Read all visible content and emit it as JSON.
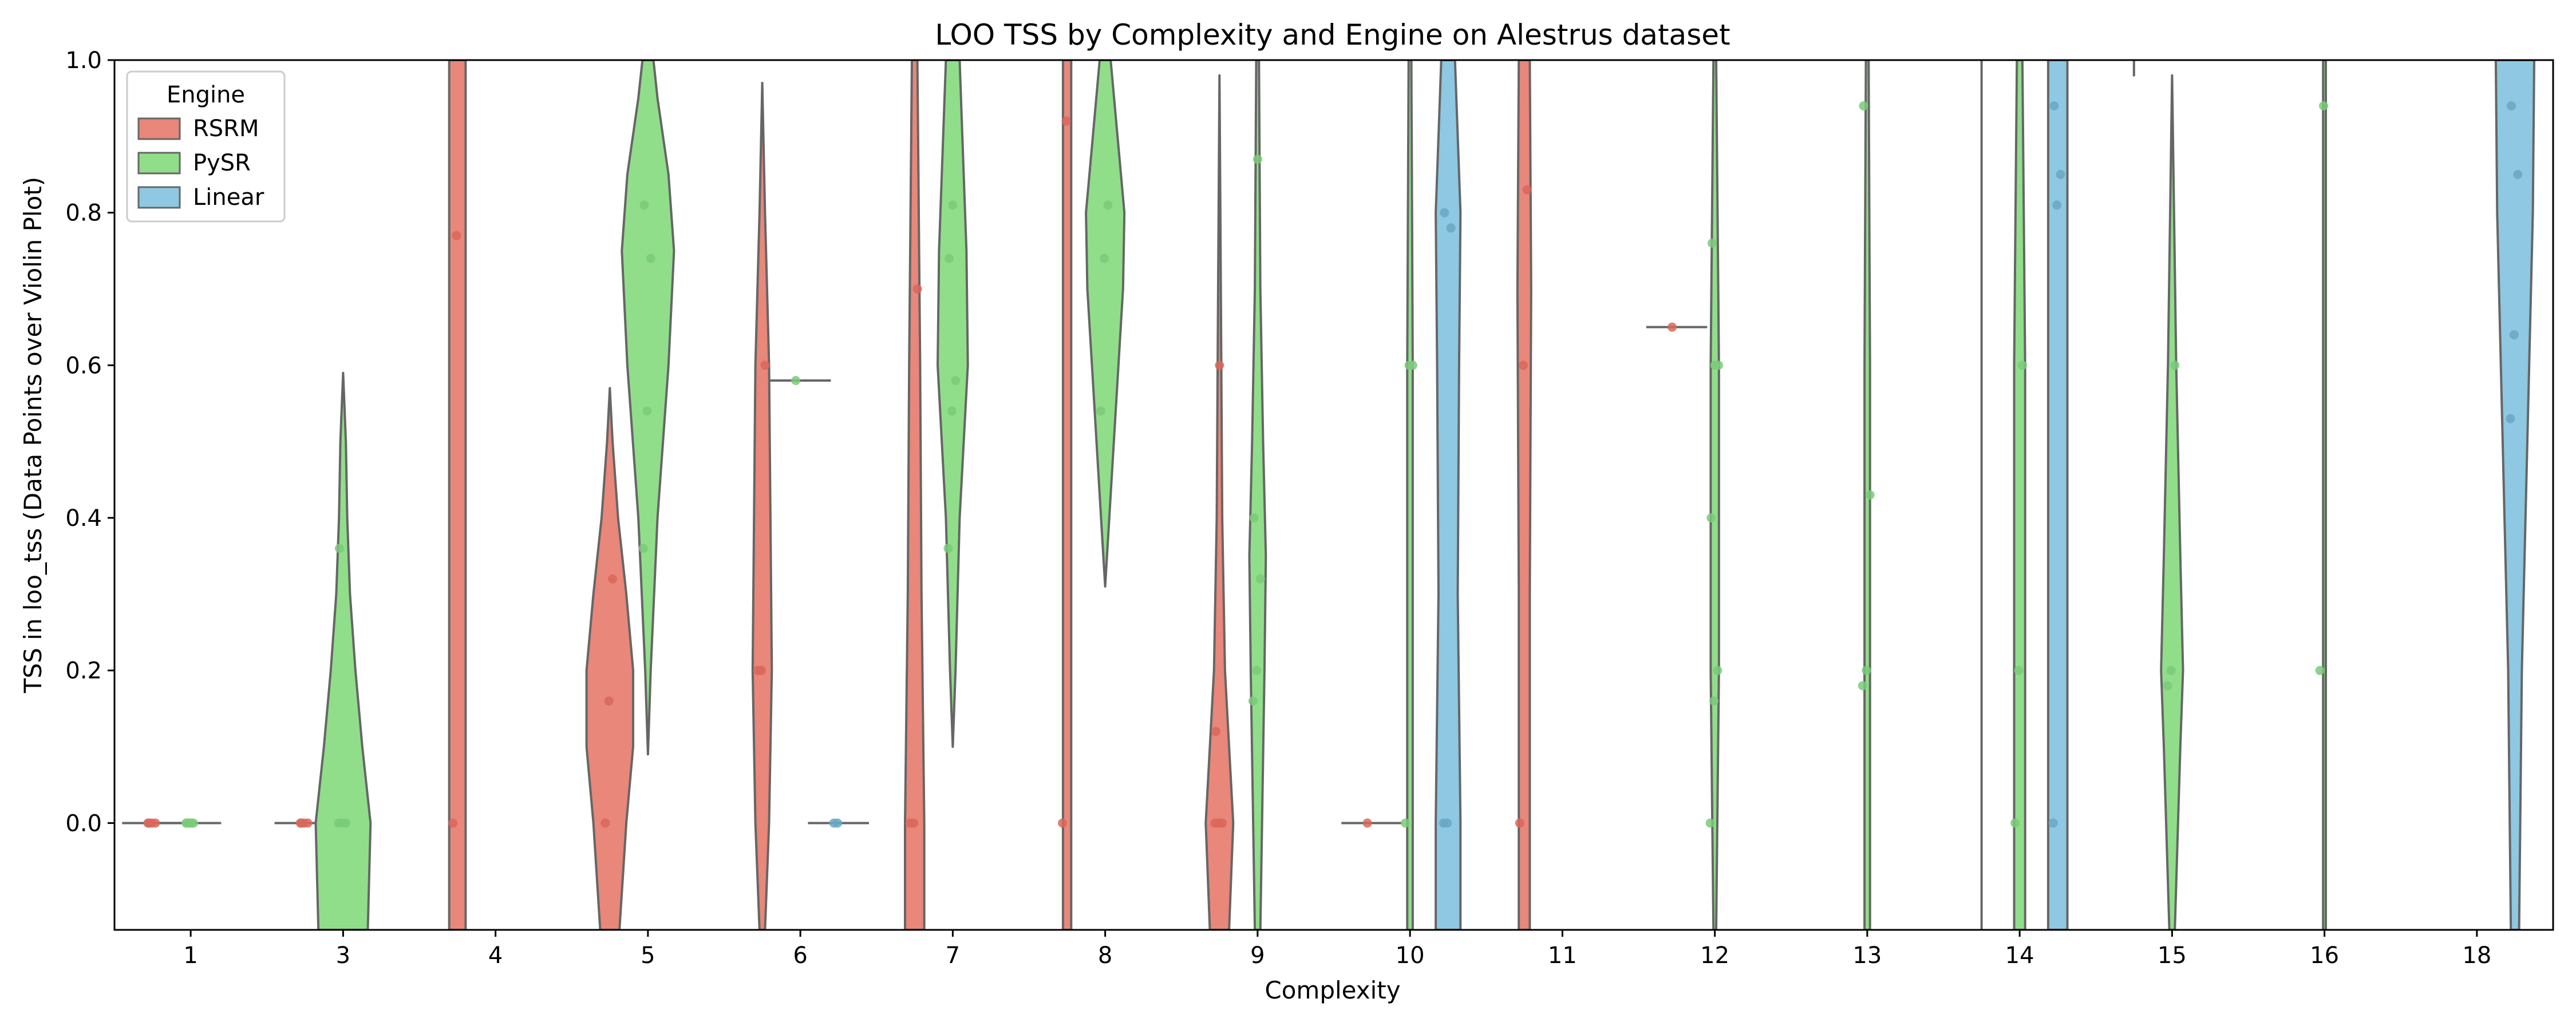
{
  "chart_data": {
    "type": "violin",
    "title": "LOO TSS by Complexity and Engine on Alestrus dataset",
    "xlabel": "Complexity",
    "ylabel": "TSS in loo_tss (Data Points over Violin Plot)",
    "ylim": [
      -0.14,
      1.0
    ],
    "yticks": [
      0.0,
      0.2,
      0.4,
      0.6,
      0.8,
      1.0
    ],
    "ytick_labels": [
      "0.0",
      "0.2",
      "0.4",
      "0.6",
      "0.8",
      "1.0"
    ],
    "categories": [
      "1",
      "3",
      "4",
      "5",
      "6",
      "7",
      "8",
      "9",
      "10",
      "11",
      "12",
      "13",
      "14",
      "15",
      "16",
      "18"
    ],
    "legend": {
      "title": "Engine",
      "position": "top-left"
    },
    "series": [
      {
        "name": "RSRM",
        "color": "#e8877a",
        "dot_color": "#d9675b",
        "offset": -0.25
      },
      {
        "name": "PySR",
        "color": "#90de8a",
        "dot_color": "#7acb79",
        "offset": 0.0
      },
      {
        "name": "Linear",
        "color": "#8ec8e2",
        "dot_color": "#6aa7c4",
        "offset": 0.25
      }
    ],
    "violins": [
      {
        "category": "1",
        "engine": "RSRM",
        "slot": -0.25,
        "profile": "flat",
        "center": 0.0,
        "points": [
          0.0,
          0.0,
          0.0,
          0.0
        ]
      },
      {
        "category": "1",
        "engine": "PySR",
        "slot": 0.0,
        "profile": "flat",
        "center": 0.0,
        "points": [
          0.0,
          0.0,
          0.0,
          0.0,
          0.0
        ]
      },
      {
        "category": "3",
        "engine": "RSRM",
        "slot": -0.25,
        "profile": "flat",
        "center": 0.0,
        "points": [
          0.0,
          0.0,
          0.0,
          0.0
        ]
      },
      {
        "category": "3",
        "engine": "PySR",
        "slot": 0.0,
        "profile": [
          [
            -0.14,
            0.18
          ],
          [
            0.0,
            0.2
          ],
          [
            0.1,
            0.14
          ],
          [
            0.2,
            0.09
          ],
          [
            0.3,
            0.05
          ],
          [
            0.4,
            0.03
          ],
          [
            0.5,
            0.02
          ],
          [
            0.59,
            0.0
          ]
        ],
        "points": [
          0.0,
          0.0,
          0.0,
          0.36
        ]
      },
      {
        "category": "4",
        "engine": "RSRM",
        "slot": -0.25,
        "profile": [
          [
            -0.14,
            0.06
          ],
          [
            0.3,
            0.06
          ],
          [
            0.7,
            0.06
          ],
          [
            1.0,
            0.06
          ]
        ],
        "points": [
          0.0,
          0.77
        ]
      },
      {
        "category": "5",
        "engine": "RSRM",
        "slot": -0.25,
        "profile": [
          [
            -0.14,
            0.07
          ],
          [
            0.0,
            0.12
          ],
          [
            0.1,
            0.17
          ],
          [
            0.2,
            0.17
          ],
          [
            0.3,
            0.12
          ],
          [
            0.4,
            0.06
          ],
          [
            0.5,
            0.02
          ],
          [
            0.57,
            0.0
          ]
        ],
        "points": [
          0.0,
          0.16,
          0.32
        ]
      },
      {
        "category": "5",
        "engine": "PySR",
        "slot": 0.0,
        "profile": [
          [
            0.09,
            0.0
          ],
          [
            0.2,
            0.02
          ],
          [
            0.4,
            0.07
          ],
          [
            0.6,
            0.15
          ],
          [
            0.75,
            0.19
          ],
          [
            0.85,
            0.15
          ],
          [
            0.95,
            0.07
          ],
          [
            1.0,
            0.04
          ]
        ],
        "points": [
          0.36,
          0.54,
          0.74,
          0.81
        ]
      },
      {
        "category": "6",
        "engine": "RSRM",
        "slot": -0.25,
        "profile": [
          [
            -0.14,
            0.02
          ],
          [
            0.0,
            0.05
          ],
          [
            0.2,
            0.07
          ],
          [
            0.4,
            0.06
          ],
          [
            0.6,
            0.05
          ],
          [
            0.8,
            0.02
          ],
          [
            0.97,
            0.0
          ]
        ],
        "points": [
          0.2,
          0.2,
          0.6
        ]
      },
      {
        "category": "6",
        "engine": "PySR",
        "slot": 0.0,
        "profile": "flat",
        "center": 0.58,
        "points": [
          0.58
        ]
      },
      {
        "category": "6",
        "engine": "Linear",
        "slot": 0.25,
        "profile": "flat",
        "center": 0.0,
        "points": [
          0.0,
          0.0
        ]
      },
      {
        "category": "7",
        "engine": "RSRM",
        "slot": -0.25,
        "profile": [
          [
            -0.14,
            0.07
          ],
          [
            0.0,
            0.07
          ],
          [
            0.3,
            0.05
          ],
          [
            0.6,
            0.04
          ],
          [
            0.8,
            0.03
          ],
          [
            1.0,
            0.02
          ]
        ],
        "points": [
          0.0,
          0.0,
          0.7
        ]
      },
      {
        "category": "7",
        "engine": "PySR",
        "slot": 0.0,
        "profile": [
          [
            0.1,
            0.0
          ],
          [
            0.2,
            0.02
          ],
          [
            0.4,
            0.05
          ],
          [
            0.6,
            0.11
          ],
          [
            0.75,
            0.1
          ],
          [
            0.9,
            0.07
          ],
          [
            1.0,
            0.05
          ]
        ],
        "points": [
          0.36,
          0.54,
          0.58,
          0.74,
          0.81
        ]
      },
      {
        "category": "8",
        "engine": "RSRM",
        "slot": -0.25,
        "profile": [
          [
            -0.14,
            0.03
          ],
          [
            0.3,
            0.03
          ],
          [
            0.7,
            0.03
          ],
          [
            1.0,
            0.03
          ]
        ],
        "points": [
          0.0,
          0.92
        ]
      },
      {
        "category": "8",
        "engine": "PySR",
        "slot": 0.0,
        "profile": [
          [
            0.31,
            0.0
          ],
          [
            0.4,
            0.03
          ],
          [
            0.55,
            0.08
          ],
          [
            0.7,
            0.13
          ],
          [
            0.8,
            0.14
          ],
          [
            0.9,
            0.09
          ],
          [
            1.0,
            0.04
          ]
        ],
        "points": [
          0.54,
          0.74,
          0.81
        ]
      },
      {
        "category": "9",
        "engine": "RSRM",
        "slot": -0.25,
        "profile": [
          [
            -0.14,
            0.07
          ],
          [
            0.0,
            0.1
          ],
          [
            0.1,
            0.07
          ],
          [
            0.2,
            0.04
          ],
          [
            0.4,
            0.02
          ],
          [
            0.7,
            0.01
          ],
          [
            0.98,
            0.0
          ]
        ],
        "points": [
          0.0,
          0.0,
          0.0,
          0.12,
          0.6
        ]
      },
      {
        "category": "9",
        "engine": "PySR",
        "slot": 0.0,
        "profile": [
          [
            -0.14,
            0.02
          ],
          [
            0.2,
            0.05
          ],
          [
            0.35,
            0.06
          ],
          [
            0.5,
            0.04
          ],
          [
            0.7,
            0.02
          ],
          [
            1.0,
            0.01
          ]
        ],
        "points": [
          0.16,
          0.2,
          0.32,
          0.4,
          0.87
        ]
      },
      {
        "category": "10",
        "engine": "RSRM",
        "slot": -0.25,
        "profile": "flat",
        "center": 0.0,
        "points": [
          0.0
        ]
      },
      {
        "category": "10",
        "engine": "PySR",
        "slot": 0.0,
        "profile": [
          [
            -0.14,
            0.02
          ],
          [
            0.2,
            0.02
          ],
          [
            0.6,
            0.02
          ],
          [
            1.0,
            0.01
          ]
        ],
        "points": [
          0.0,
          0.6,
          0.6
        ]
      },
      {
        "category": "10",
        "engine": "Linear",
        "slot": 0.25,
        "profile": [
          [
            -0.14,
            0.09
          ],
          [
            0.0,
            0.09
          ],
          [
            0.3,
            0.07
          ],
          [
            0.6,
            0.08
          ],
          [
            0.8,
            0.09
          ],
          [
            1.0,
            0.05
          ]
        ],
        "points": [
          0.0,
          0.0,
          0.78,
          0.8
        ]
      },
      {
        "category": "11",
        "engine": "RSRM",
        "slot": -0.25,
        "profile": [
          [
            -0.14,
            0.04
          ],
          [
            0.3,
            0.04
          ],
          [
            0.7,
            0.05
          ],
          [
            1.0,
            0.04
          ]
        ],
        "points": [
          0.0,
          0.6,
          0.83
        ]
      },
      {
        "category": "12",
        "engine": "RSRM",
        "slot": -0.25,
        "profile": "flat",
        "center": 0.65,
        "points": [
          0.65
        ]
      },
      {
        "category": "12",
        "engine": "PySR",
        "slot": 0.0,
        "profile": [
          [
            -0.14,
            0.01
          ],
          [
            0.2,
            0.03
          ],
          [
            0.6,
            0.03
          ],
          [
            1.0,
            0.01
          ]
        ],
        "points": [
          0.0,
          0.16,
          0.2,
          0.4,
          0.6,
          0.6,
          0.76
        ]
      },
      {
        "category": "13",
        "engine": "PySR",
        "slot": 0.0,
        "profile": [
          [
            -0.14,
            0.02
          ],
          [
            0.2,
            0.02
          ],
          [
            0.6,
            0.02
          ],
          [
            1.0,
            0.01
          ]
        ],
        "points": [
          0.18,
          0.2,
          0.43,
          0.94
        ]
      },
      {
        "category": "14",
        "engine": "RSRM",
        "slot": -0.25,
        "profile": [
          [
            -0.14,
            0.0
          ],
          [
            1.0,
            0.0
          ]
        ],
        "points": []
      },
      {
        "category": "14",
        "engine": "PySR",
        "slot": 0.0,
        "profile": [
          [
            -0.14,
            0.04
          ],
          [
            0.2,
            0.04
          ],
          [
            0.6,
            0.04
          ],
          [
            1.0,
            0.02
          ]
        ],
        "points": [
          0.0,
          0.2,
          0.6
        ]
      },
      {
        "category": "14",
        "engine": "Linear",
        "slot": 0.25,
        "profile": [
          [
            -0.14,
            0.07
          ],
          [
            0.3,
            0.07
          ],
          [
            0.7,
            0.07
          ],
          [
            1.0,
            0.07
          ]
        ],
        "points": [
          0.0,
          0.81,
          0.85,
          0.94
        ]
      },
      {
        "category": "15",
        "engine": "RSRM",
        "slot": -0.25,
        "profile": [
          [
            0.98,
            0.0
          ],
          [
            1.0,
            0.0
          ]
        ],
        "points": []
      },
      {
        "category": "15",
        "engine": "PySR",
        "slot": 0.0,
        "profile": [
          [
            -0.14,
            0.02
          ],
          [
            0.1,
            0.06
          ],
          [
            0.2,
            0.08
          ],
          [
            0.35,
            0.06
          ],
          [
            0.6,
            0.03
          ],
          [
            0.98,
            0.0
          ]
        ],
        "points": [
          0.18,
          0.2,
          0.6
        ]
      },
      {
        "category": "16",
        "engine": "PySR",
        "slot": 0.0,
        "profile": [
          [
            -0.14,
            0.01
          ],
          [
            0.2,
            0.01
          ],
          [
            0.6,
            0.01
          ],
          [
            1.0,
            0.01
          ]
        ],
        "points": [
          0.2,
          0.94
        ]
      },
      {
        "category": "18",
        "engine": "Linear",
        "slot": 0.25,
        "profile": [
          [
            -0.14,
            0.03
          ],
          [
            0.2,
            0.05
          ],
          [
            0.5,
            0.09
          ],
          [
            0.8,
            0.13
          ],
          [
            1.0,
            0.14
          ]
        ],
        "points": [
          0.53,
          0.64,
          0.85,
          0.94
        ]
      }
    ]
  }
}
